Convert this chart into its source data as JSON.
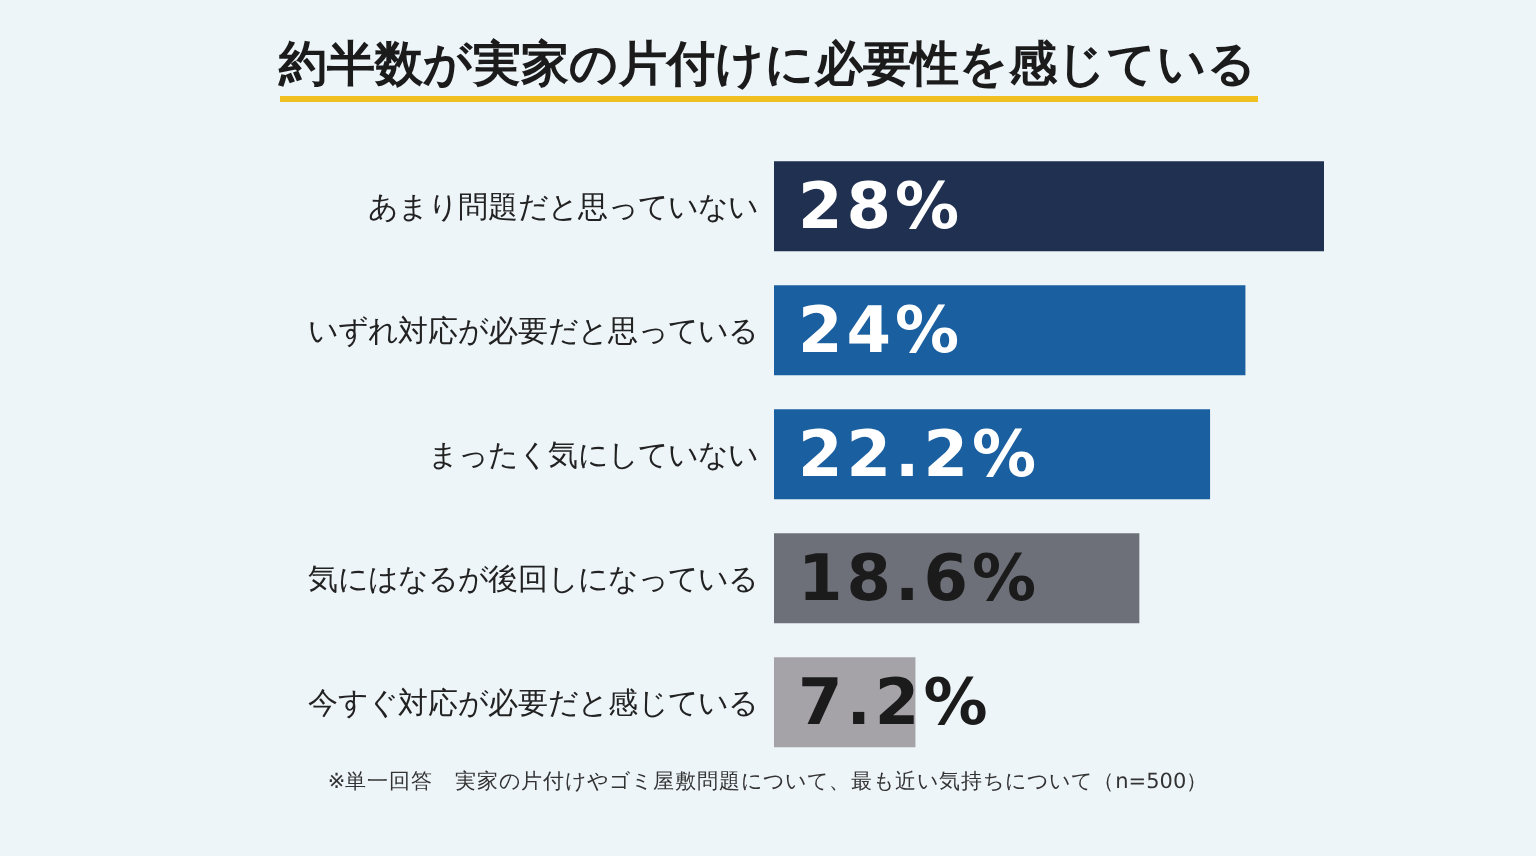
{
  "chart_data": {
    "type": "bar",
    "orientation": "horizontal",
    "title": "約半数が実家の片付けに必要性を感じている",
    "categories": [
      "あまり問題だと思っていない",
      "いずれ対応が必要だと思っている",
      "まったく気にしていない",
      "気にはなるが後回しになっている",
      "今すぐ対応が必要だと感じている"
    ],
    "values": [
      28,
      24,
      22.2,
      18.6,
      7.2
    ],
    "colors": [
      "#1f3050",
      "#1a5fa0",
      "#1a5fa0",
      "#6e7079",
      "#a5a2a8"
    ],
    "value_labels": [
      "28%",
      "24%",
      "22.2%",
      "18.6%",
      "7.2%"
    ],
    "annotations": [
      "※単一回答　実家の片付けやゴミ屋敷問題について、最も近い気持ちについて（n=500）"
    ]
  }
}
